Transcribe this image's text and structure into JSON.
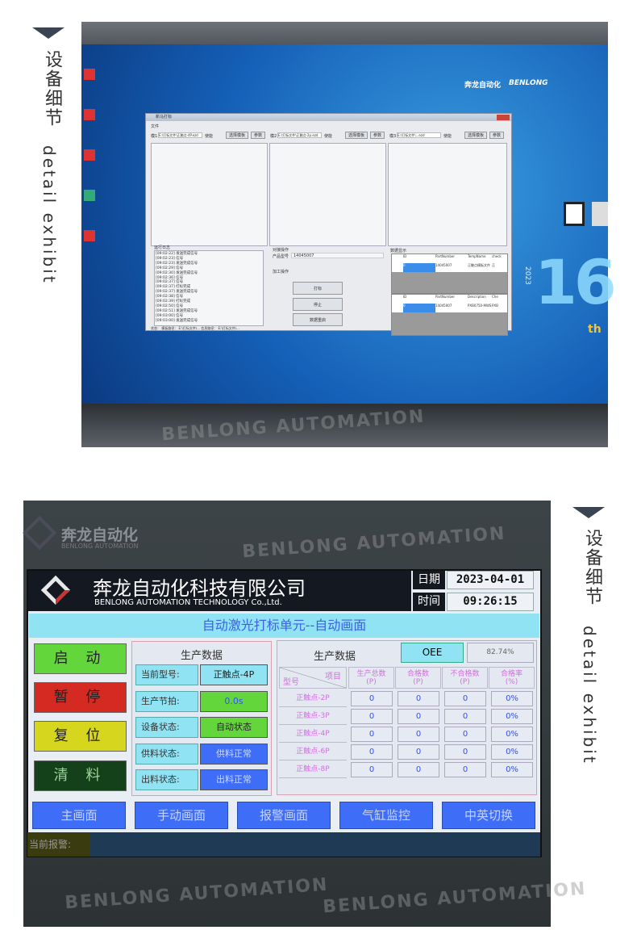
{
  "side_labels": {
    "cn": "设备细节",
    "en": "detail exhibit"
  },
  "watermark": "BENLONG AUTOMATION",
  "photo1": {
    "window_title": "新马打标",
    "menu": "文件",
    "templates": [
      {
        "label": "模1",
        "path": "E:\\打标文件\\正触点-4P.ezd",
        "check": "使能",
        "select": "选择模板",
        "param": "参数"
      },
      {
        "label": "模2",
        "path": "E:\\打标文件\\正触点-2p.ezd",
        "check": "使能",
        "select": "选择模板",
        "param": "参数"
      },
      {
        "label": "模3",
        "path": "E:\\打标文件\\...ezd",
        "check": "使能",
        "select": "选择模板",
        "param": "参数"
      }
    ],
    "log_title": "运行日志",
    "log": [
      "[09:02:22] 发送完成信号",
      "[09:02:23] 信号",
      "[09:02:23] 发送完成信号",
      "[09:02:29] 信号",
      "[09:02:30] 发送完成信号",
      "[09:02:36] 信号",
      "[09:02:37] 信号",
      "[09:02:37] 打标完成",
      "[09:02:37] 发送完成信号",
      "[09:02:38] 信号",
      "[09:02:39] 打标完成",
      "[09:02:50] 信号",
      "[09:02:51] 发送完成信号",
      "[09:03:00] 信号",
      "[09:03:00] 发送完成信号"
    ],
    "ops_title": "对接操作",
    "product_label": "产品型号",
    "product_value": "14045007",
    "process_label": "加工操作",
    "buttons": [
      "打标",
      "停止",
      "数据重启"
    ],
    "data_title": "数据显示",
    "grid1_headers": [
      "ID",
      "PartNumber",
      "TempName",
      "check"
    ],
    "grid1_row": [
      "0",
      "14045007",
      "正触点模板文件",
      "正"
    ],
    "grid2_headers": [
      "ID",
      "PartNumber",
      "Description",
      "Che"
    ],
    "grid2_row": [
      "0",
      "14045007",
      "PXB0750-MWS2B-4",
      "PXB"
    ],
    "status": "状态： 模板路径： E:\\打标文件\\...  信息路径： E:\\打标文件\\...",
    "desktop": {
      "brand": "奔龙自动化",
      "brand_en": "BENLONG",
      "anniversary": "16",
      "anniversary_suffix": "th",
      "year": "2023"
    }
  },
  "photo2": {
    "bezel_logo": "奔龙自动化",
    "bezel_logo_en": "BENLONG AUTOMATION",
    "company": "奔龙自动化科技有限公司",
    "company_en": "BENLONG AUTOMATION TECHNOLOGY Co.,Ltd.",
    "date_label": "日期",
    "date": "2023-04-01",
    "time_label": "时间",
    "time": "09:26:15",
    "title": "自动激光打标单元--自动画面",
    "controls": [
      {
        "label": "启 动",
        "color": "#62d63a"
      },
      {
        "label": "暂 停",
        "color": "#d42a22"
      },
      {
        "label": "复 位",
        "color": "#d6d61e"
      },
      {
        "label": "清 料",
        "color": "#14401a"
      }
    ],
    "prod": {
      "title": "生产数据",
      "rows": [
        {
          "label": "当前型号:",
          "value": "正触点-4P",
          "color": "#8fe3f3"
        },
        {
          "label": "生产节拍:",
          "value": "0.0s",
          "color": "#62d63a"
        },
        {
          "label": "设备状态:",
          "value": "自动状态",
          "color": "#62d63a"
        },
        {
          "label": "供料状态:",
          "value": "供料正常",
          "color": "#3e6ef7"
        },
        {
          "label": "出料状态:",
          "value": "出料正常",
          "color": "#3e6ef7"
        }
      ]
    },
    "stats": {
      "title": "生产数据",
      "oee_label": "OEE",
      "oee_value": "82.74%",
      "corner_top": "项目",
      "corner_bottom": "型号",
      "headers": [
        "生产总数\n(P)",
        "合格数\n(P)",
        "不合格数\n(P)",
        "合格率\n(%)"
      ],
      "rows": [
        {
          "model": "正触点-2P",
          "cells": [
            "0",
            "0",
            "0",
            "0%"
          ]
        },
        {
          "model": "正触点-3P",
          "cells": [
            "0",
            "0",
            "0",
            "0%"
          ]
        },
        {
          "model": "正触点-4P",
          "cells": [
            "0",
            "0",
            "0",
            "0%"
          ]
        },
        {
          "model": "正触点-6P",
          "cells": [
            "0",
            "0",
            "0",
            "0%"
          ]
        },
        {
          "model": "正触点-8P",
          "cells": [
            "0",
            "0",
            "0",
            "0%"
          ]
        }
      ]
    },
    "nav": [
      "主画面",
      "手动画面",
      "报警画面",
      "气缸监控",
      "中英切换"
    ],
    "alarm_label": "当前报警:"
  }
}
